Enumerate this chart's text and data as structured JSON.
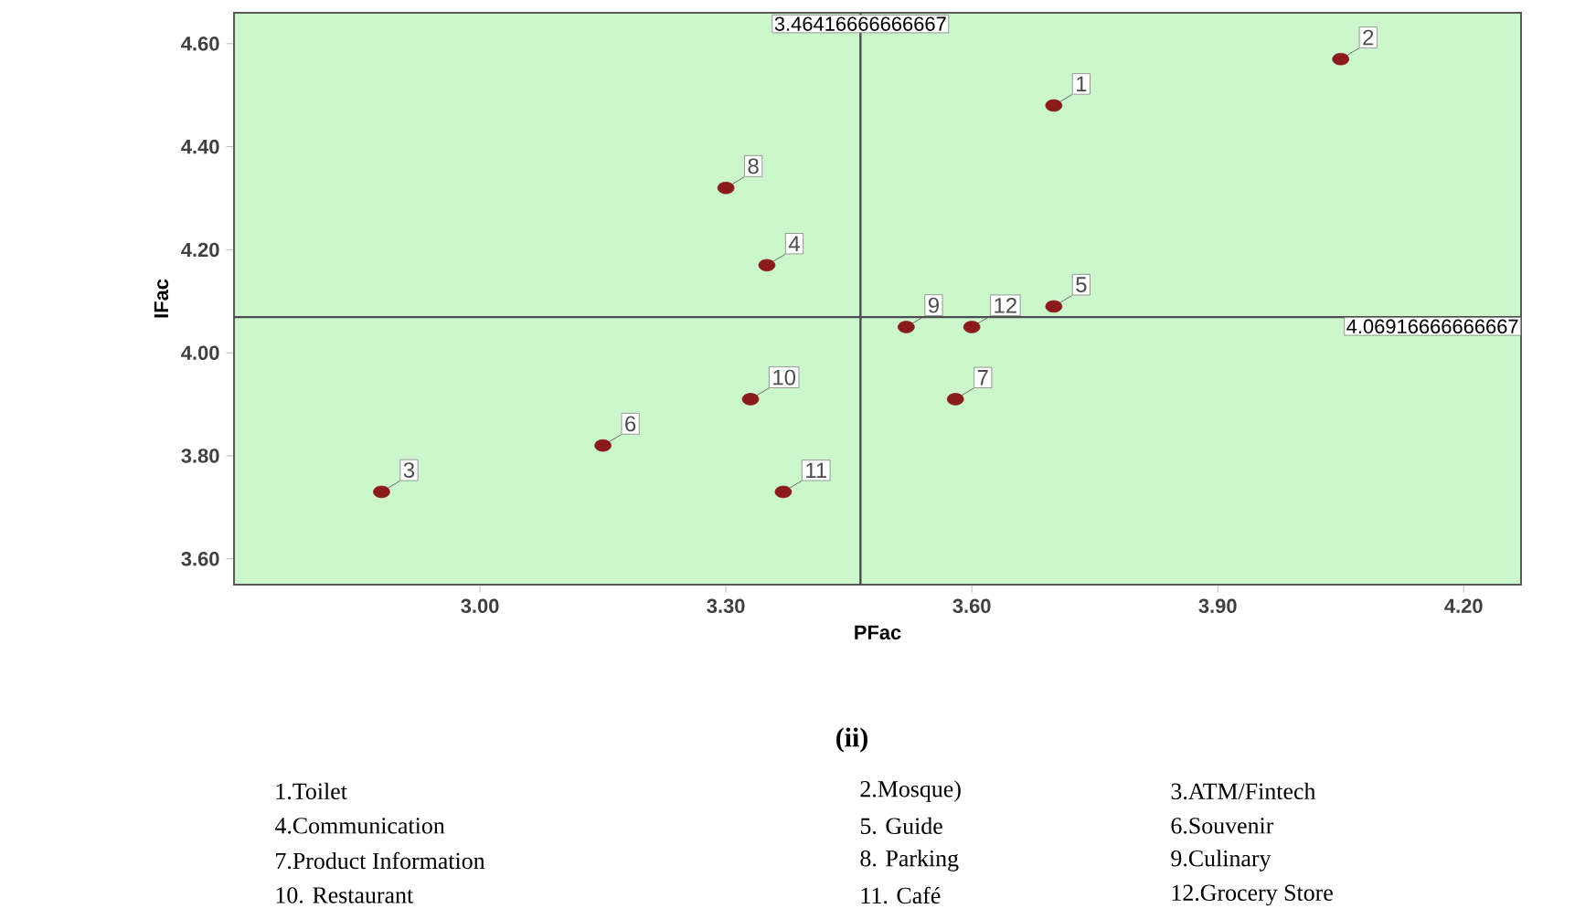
{
  "chart_data": {
    "type": "scatter",
    "title": "(ii)",
    "xlabel": "PFac",
    "ylabel": "IFac",
    "x": [
      3.7,
      4.05,
      2.88,
      3.35,
      3.7,
      3.15,
      3.58,
      3.3,
      3.52,
      3.33,
      3.37,
      3.6
    ],
    "series": [
      {
        "color": "#8b1a1a",
        "values": [
          4.48,
          4.57,
          3.73,
          4.17,
          4.09,
          3.82,
          3.91,
          4.32,
          4.05,
          3.91,
          3.73,
          4.05
        ]
      }
    ],
    "marker": "circle",
    "grid": false,
    "xlim": [
      2.7,
      4.27
    ],
    "ylim": [
      3.55,
      4.66
    ],
    "xticks": [
      {
        "value": 3.0,
        "label": "3.00"
      },
      {
        "value": 3.3,
        "label": "3.30"
      },
      {
        "value": 3.6,
        "label": "3.60"
      },
      {
        "value": 3.9,
        "label": "3.90"
      },
      {
        "value": 4.2,
        "label": "4.20"
      }
    ],
    "yticks": [
      {
        "value": 3.6,
        "label": "3.60"
      },
      {
        "value": 3.8,
        "label": "3.80"
      },
      {
        "value": 4.0,
        "label": "4.00"
      },
      {
        "value": 4.2,
        "label": "4.20"
      },
      {
        "value": 4.4,
        "label": "4.40"
      },
      {
        "value": 4.6,
        "label": "4.60"
      }
    ],
    "ref_lines": [
      {
        "axis": "x",
        "value": 3.46416666666667,
        "label": "3.46416666666667"
      },
      {
        "axis": "y",
        "value": 4.06916666666667,
        "label": "4.06916666666667"
      }
    ],
    "annotations": [
      {
        "text": "1",
        "x": 3.7,
        "y": 4.48
      },
      {
        "text": "2",
        "x": 4.05,
        "y": 4.57
      },
      {
        "text": "3",
        "x": 2.88,
        "y": 3.73
      },
      {
        "text": "4",
        "x": 3.35,
        "y": 4.17
      },
      {
        "text": "5",
        "x": 3.7,
        "y": 4.09
      },
      {
        "text": "6",
        "x": 3.15,
        "y": 3.82
      },
      {
        "text": "7",
        "x": 3.58,
        "y": 3.91
      },
      {
        "text": "8",
        "x": 3.3,
        "y": 4.32
      },
      {
        "text": "9",
        "x": 3.52,
        "y": 4.05
      },
      {
        "text": "10",
        "x": 3.33,
        "y": 3.91
      },
      {
        "text": "11",
        "x": 3.37,
        "y": 3.73
      },
      {
        "text": "12",
        "x": 3.6,
        "y": 4.05
      },
      "1.Toilet",
      "2.Mosque)",
      "3.ATM/Fintech",
      "4.Communication",
      "5.  Guide",
      "6.Souvenir",
      "7.Product Information",
      "8.  Parking",
      "9.Culinary",
      "10. Restaurant",
      "11. Café",
      "12.Grocery Store"
    ]
  }
}
